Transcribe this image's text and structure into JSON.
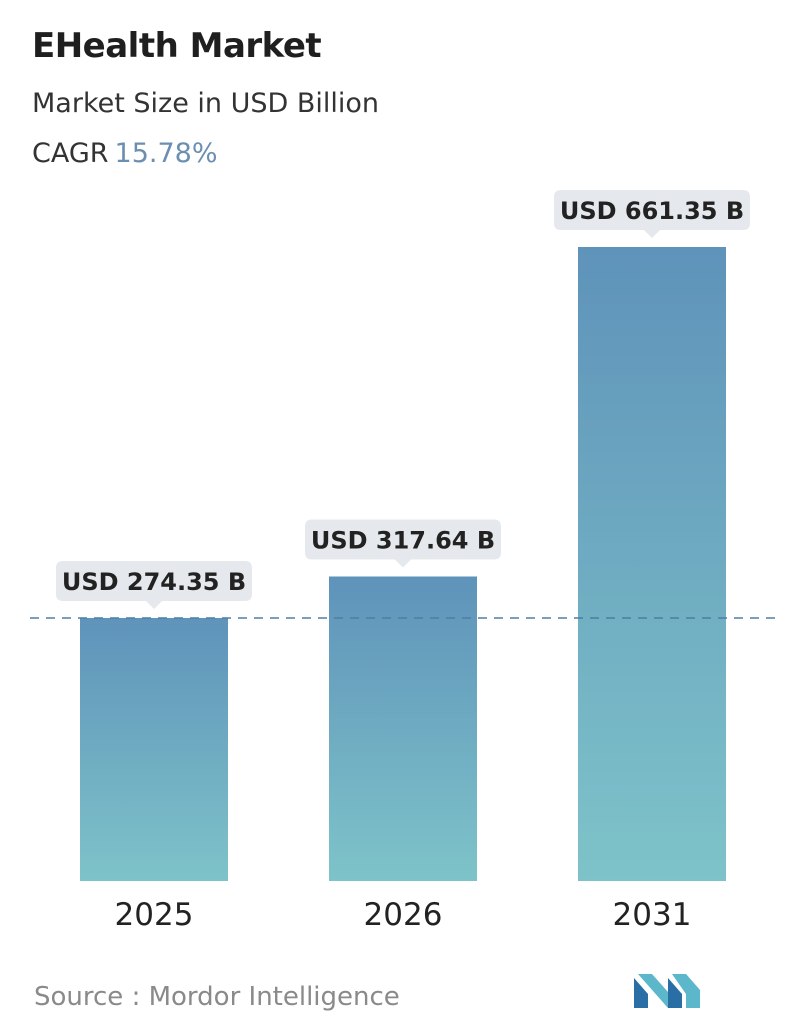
{
  "header": {
    "title": "EHealth Market",
    "subtitle": "Market Size in USD Billion",
    "cagr_label": "CAGR",
    "cagr_value": "15.78%"
  },
  "chart_data": {
    "type": "bar",
    "categories": [
      "2025",
      "2026",
      "2031"
    ],
    "values": [
      274.35,
      317.64,
      661.35
    ],
    "data_labels": [
      "USD 274.35 B",
      "USD 317.64 B",
      "USD 661.35 B"
    ],
    "title": "EHealth Market",
    "subtitle": "Market Size in USD Billion",
    "xlabel": "",
    "ylabel": "",
    "ylim": [
      0,
      661.35
    ],
    "grid": false,
    "reference_line": 274.35,
    "colors": {
      "bar_top": "#5f93ba",
      "bar_bottom": "#7ec3c9",
      "label_bg": "#e5e8ec",
      "dash": "#4e7fa6"
    }
  },
  "footer": {
    "source": "Source :  Mordor Intelligence",
    "logo": "mordor-intelligence-logo"
  }
}
